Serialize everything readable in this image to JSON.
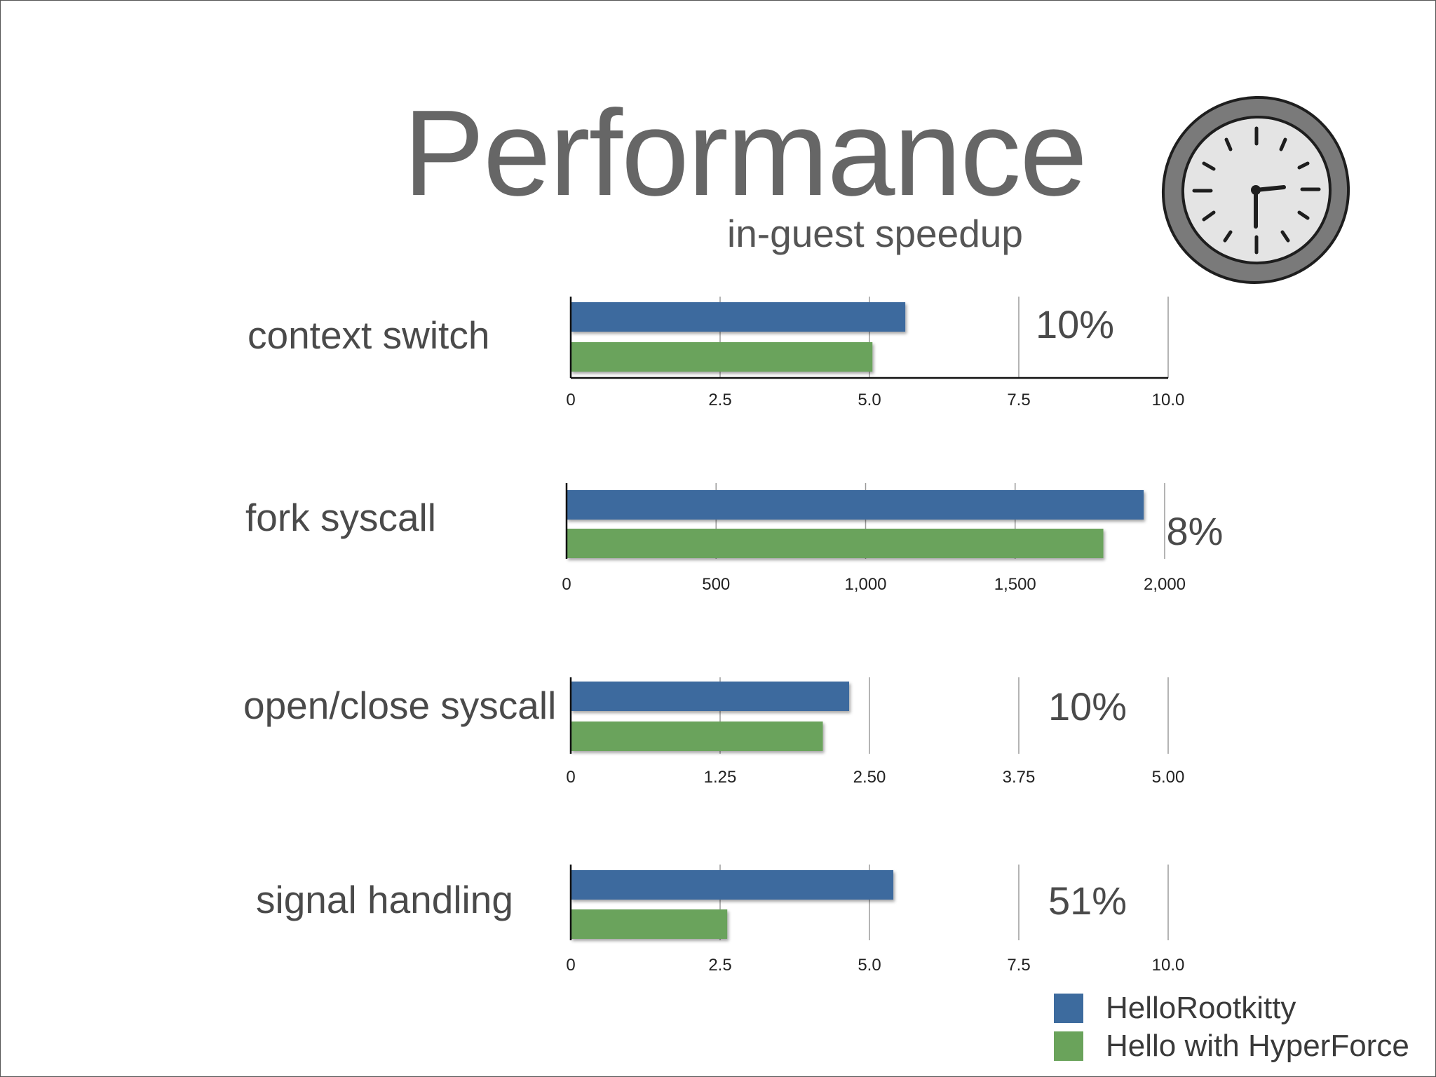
{
  "title": "Performance",
  "subtitle": "in-guest speedup",
  "colors": {
    "series1": "#3d6b9e",
    "series2": "#6aa35b",
    "text": "#4a4a4a"
  },
  "legend": [
    {
      "label": "HelloRootkitty",
      "color": "#3d6b9e"
    },
    {
      "label": "Hello with HyperForce",
      "color": "#6aa35b"
    }
  ],
  "chart_data": [
    {
      "type": "bar",
      "orientation": "horizontal",
      "label": "context switch",
      "speedup": "10%",
      "xlim": [
        0,
        10
      ],
      "ticks": [
        0,
        2.5,
        5,
        7.5,
        10
      ],
      "tick_labels": [
        "0",
        "2.5",
        "5.0",
        "7.5",
        "10.0"
      ],
      "series": [
        {
          "name": "HelloRootkitty",
          "value": 5.6
        },
        {
          "name": "Hello with HyperForce",
          "value": 5.05
        }
      ]
    },
    {
      "type": "bar",
      "orientation": "horizontal",
      "label": "fork syscall",
      "speedup": "8%",
      "xlim": [
        0,
        2000
      ],
      "ticks": [
        0,
        500,
        1000,
        1500,
        2000
      ],
      "tick_labels": [
        "0",
        "500",
        "1,000",
        "1,500",
        "2,000"
      ],
      "series": [
        {
          "name": "HelloRootkitty",
          "value": 1930
        },
        {
          "name": "Hello with HyperForce",
          "value": 1795
        }
      ]
    },
    {
      "type": "bar",
      "orientation": "horizontal",
      "label": "open/close syscall",
      "speedup": "10%",
      "xlim": [
        0,
        5
      ],
      "ticks": [
        0,
        1.25,
        2.5,
        3.75,
        5
      ],
      "tick_labels": [
        "0",
        "1.25",
        "2.50",
        "3.75",
        "5.00"
      ],
      "series": [
        {
          "name": "HelloRootkitty",
          "value": 2.33
        },
        {
          "name": "Hello with HyperForce",
          "value": 2.11
        }
      ]
    },
    {
      "type": "bar",
      "orientation": "horizontal",
      "label": "signal handling",
      "speedup": "51%",
      "xlim": [
        0,
        10
      ],
      "ticks": [
        0,
        2.5,
        5,
        7.5,
        10
      ],
      "tick_labels": [
        "0",
        "2.5",
        "5.0",
        "7.5",
        "10.0"
      ],
      "series": [
        {
          "name": "HelloRootkitty",
          "value": 5.4
        },
        {
          "name": "Hello with HyperForce",
          "value": 2.62
        }
      ]
    }
  ]
}
